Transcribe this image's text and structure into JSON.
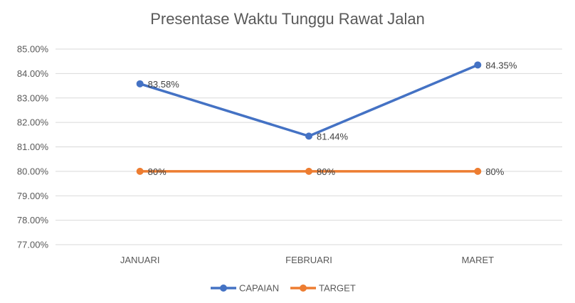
{
  "chart_data": {
    "type": "line",
    "title": "Presentase Waktu Tunggu Rawat Jalan",
    "categories": [
      "JANUARI",
      "FEBRUARI",
      "MARET"
    ],
    "series": [
      {
        "name": "CAPAIAN",
        "values": [
          83.58,
          81.44,
          84.35
        ],
        "labels": [
          "83.58%",
          "81.44%",
          "84.35%"
        ],
        "color": "#4472C4"
      },
      {
        "name": "TARGET",
        "values": [
          80,
          80,
          80
        ],
        "labels": [
          "80%",
          "80%",
          "80%"
        ],
        "color": "#ED7D31"
      }
    ],
    "ylim": [
      77,
      85
    ],
    "yticks": [
      77,
      78,
      79,
      80,
      81,
      82,
      83,
      84,
      85
    ],
    "ytick_labels": [
      "77.00%",
      "78.00%",
      "79.00%",
      "80.00%",
      "81.00%",
      "82.00%",
      "83.00%",
      "84.00%",
      "85.00%"
    ],
    "grid": true,
    "legend": "bottom"
  }
}
